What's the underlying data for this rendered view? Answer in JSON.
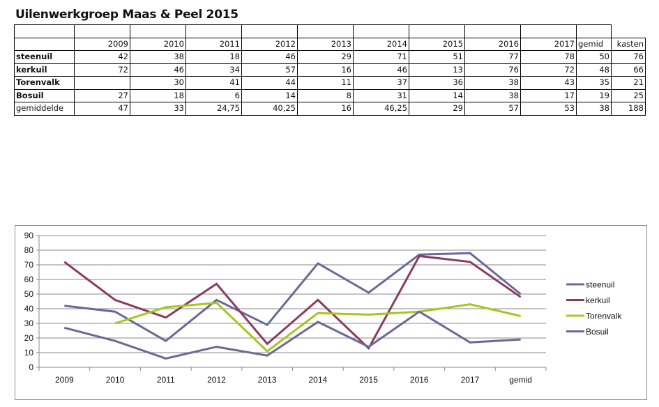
{
  "title": "Uilenwerkgroep Maas & Peel 2015",
  "table": {
    "headers": [
      "",
      "2009",
      "2010",
      "2011",
      "2012",
      "2013",
      "2014",
      "2015",
      "2016",
      "2017",
      "gemid",
      "kasten"
    ],
    "rows": [
      {
        "label": "steenuil",
        "bold": true,
        "cells": [
          "42",
          "38",
          "18",
          "46",
          "29",
          "71",
          "51",
          "77",
          "78",
          "50",
          "76"
        ]
      },
      {
        "label": "kerkuil",
        "bold": true,
        "cells": [
          "72",
          "46",
          "34",
          "57",
          "16",
          "46",
          "13",
          "76",
          "72",
          "48",
          "66"
        ]
      },
      {
        "label": "Torenvalk",
        "bold": true,
        "cells": [
          "",
          "30",
          "41",
          "44",
          "11",
          "37",
          "36",
          "38",
          "43",
          "35",
          "21"
        ]
      },
      {
        "label": "Bosuil",
        "bold": true,
        "cells": [
          "27",
          "18",
          "6",
          "14",
          "8",
          "31",
          "14",
          "38",
          "17",
          "19",
          "25"
        ]
      },
      {
        "label": "gemiddelde",
        "bold": false,
        "cells": [
          "47",
          "33",
          "24,75",
          "40,25",
          "16",
          "46,25",
          "29",
          "57",
          "53",
          "38",
          "188"
        ]
      }
    ]
  },
  "chart_data": {
    "type": "line",
    "title": "",
    "xlabel": "",
    "ylabel": "",
    "categories": [
      "2009",
      "2010",
      "2011",
      "2012",
      "2013",
      "2014",
      "2015",
      "2016",
      "2017",
      "gemid"
    ],
    "ylim": [
      0,
      90
    ],
    "yticks": [
      0,
      10,
      20,
      30,
      40,
      50,
      60,
      70,
      80,
      90
    ],
    "grid": true,
    "legend_position": "right",
    "series": [
      {
        "name": "steenuil",
        "color": "#6b6899",
        "values": [
          42,
          38,
          18,
          46,
          29,
          71,
          51,
          77,
          78,
          50
        ]
      },
      {
        "name": "kerkuil",
        "color": "#8c3a5e",
        "values": [
          72,
          46,
          34,
          57,
          16,
          46,
          13,
          76,
          72,
          48
        ]
      },
      {
        "name": "Torenvalk",
        "color": "#a3c81e",
        "values": [
          null,
          30,
          41,
          44,
          11,
          37,
          36,
          38,
          43,
          35
        ]
      },
      {
        "name": "Bosuil",
        "color": "#6b6899",
        "values": [
          27,
          18,
          6,
          14,
          8,
          31,
          14,
          38,
          17,
          19
        ]
      }
    ]
  }
}
